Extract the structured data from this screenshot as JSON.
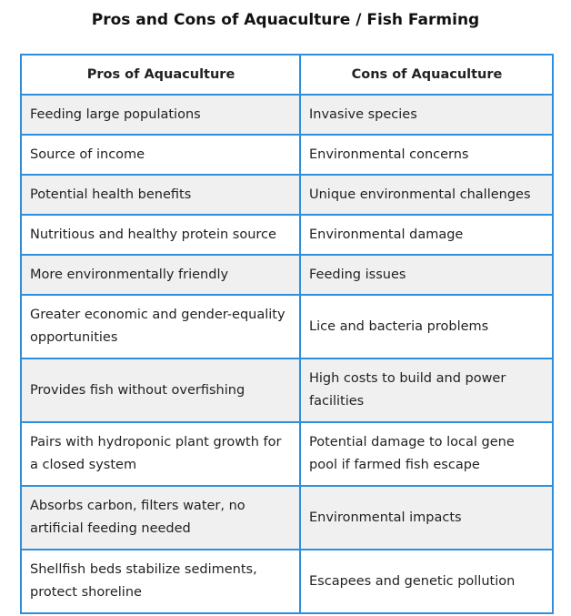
{
  "title": "Pros and Cons of Aquaculture / Fish Farming",
  "table": {
    "headers": [
      "Pros of Aquaculture",
      "Cons of Aquaculture"
    ],
    "rows": [
      {
        "pro": "Feeding large populations",
        "con": "Invasive species"
      },
      {
        "pro": "Source of income",
        "con": "Environmental concerns"
      },
      {
        "pro": "Potential health benefits",
        "con": "Unique environmental challenges"
      },
      {
        "pro": "Nutritious and healthy protein source",
        "con": "Environmental damage"
      },
      {
        "pro": "More environmentally friendly",
        "con": "Feeding issues"
      },
      {
        "pro": "Greater economic and gender-equality opportunities",
        "con": "Lice and bacteria problems"
      },
      {
        "pro": "Provides fish without overfishing",
        "con": "High costs to build and power facilities"
      },
      {
        "pro": "Pairs with hydroponic plant growth for a closed system",
        "con": "Potential damage to local gene pool if farmed fish escape"
      },
      {
        "pro": "Absorbs carbon, filters water, no artificial feeding needed",
        "con": "Environmental impacts"
      },
      {
        "pro": "Shellfish beds stabilize sediments, protect shoreline",
        "con": "Escapees and genetic pollution"
      }
    ]
  },
  "colors": {
    "border": "#2f8fdc",
    "row_shade": "#f0f0f0",
    "row_plain": "#ffffff"
  }
}
